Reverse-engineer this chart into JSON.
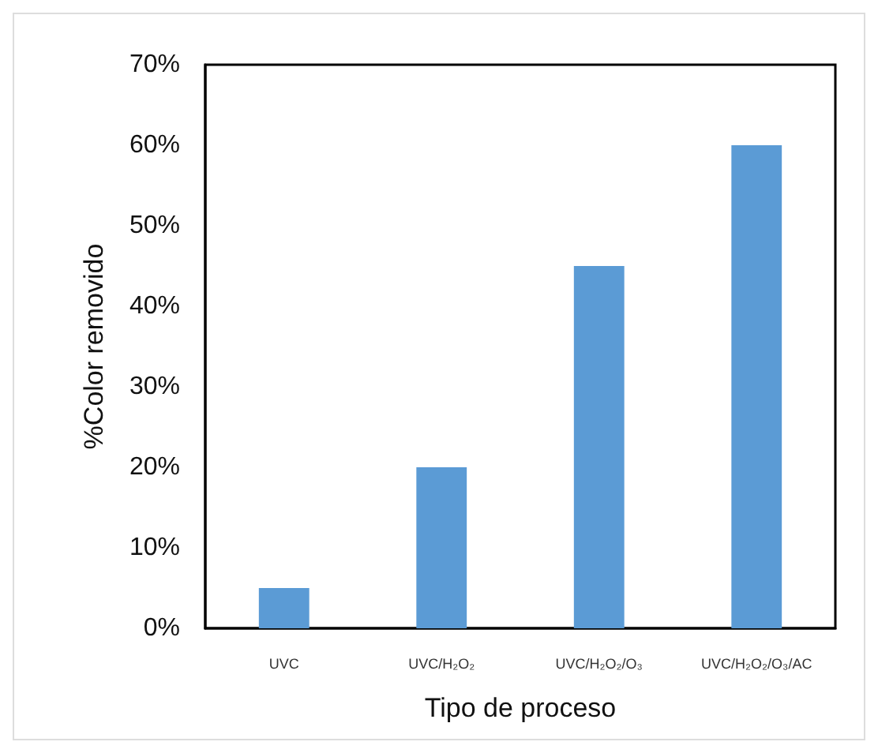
{
  "chart_data": {
    "type": "bar",
    "xlabel": "Tipo de proceso",
    "ylabel": "%Color removido",
    "categories": [
      "UVC",
      "UVC/H₂O₂",
      "UVC/H₂O₂/O₃",
      "UVC/H₂O₂/O₃/AC"
    ],
    "values": [
      5,
      20,
      45,
      60
    ],
    "color": "#5b9bd5",
    "ylim": [
      0,
      70
    ],
    "yticks": [
      {
        "value": 0,
        "label": "0%"
      },
      {
        "value": 10,
        "label": "10%"
      },
      {
        "value": 20,
        "label": "20%"
      },
      {
        "value": 30,
        "label": "30%"
      },
      {
        "value": 40,
        "label": "40%"
      },
      {
        "value": 50,
        "label": "50%"
      },
      {
        "value": 60,
        "label": "60%"
      },
      {
        "value": 70,
        "label": "70%"
      }
    ],
    "grid": false
  }
}
